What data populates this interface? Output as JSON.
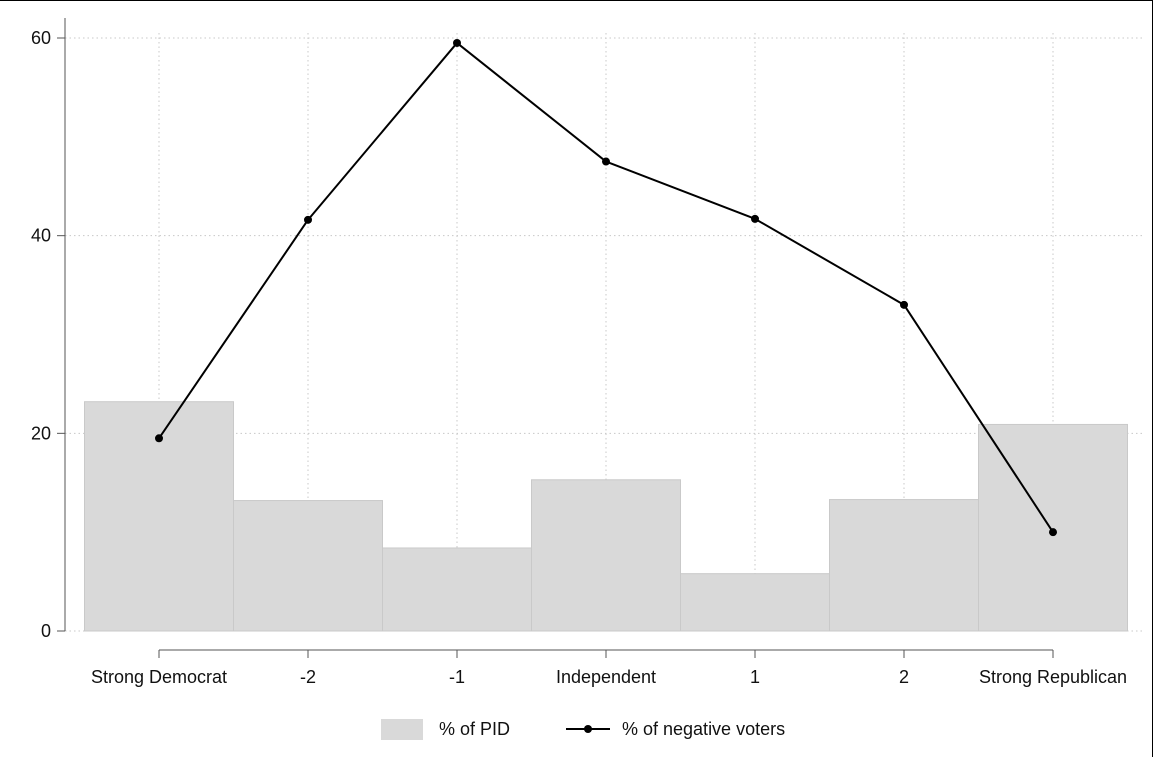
{
  "chart_data": {
    "type": "bar",
    "categories": [
      "Strong Democrat",
      "-2",
      "-1",
      "Independent",
      "1",
      "2",
      "Strong Republican"
    ],
    "series": [
      {
        "name": "% of PID",
        "type": "bar",
        "values": [
          23.2,
          13.2,
          8.4,
          15.3,
          5.8,
          13.3,
          20.9
        ],
        "color": "#d9d9d9"
      },
      {
        "name": "% of negative voters",
        "type": "line",
        "values": [
          19.5,
          41.6,
          59.5,
          47.5,
          41.7,
          33.0,
          10.0
        ],
        "color": "#000000"
      }
    ],
    "ylim": [
      0,
      60
    ],
    "yticks": [
      0,
      20,
      40,
      60
    ],
    "xlabel": "",
    "ylabel": "",
    "title": "",
    "grid": true,
    "legend": "bottom"
  }
}
